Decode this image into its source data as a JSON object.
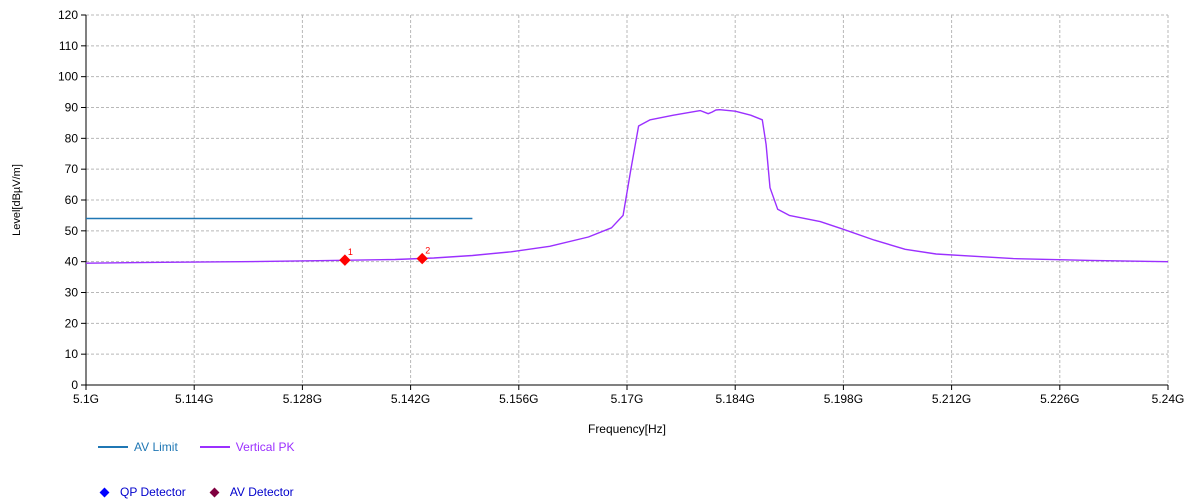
{
  "chart_data": {
    "type": "line",
    "xlabel": "Frequency[Hz]",
    "ylabel": "Level[dBµV/m]",
    "xlim": [
      5.1,
      5.24
    ],
    "ylim": [
      0,
      120
    ],
    "x_ticks": [
      5.1,
      5.114,
      5.128,
      5.142,
      5.156,
      5.17,
      5.184,
      5.198,
      5.212,
      5.226,
      5.24
    ],
    "x_tick_labels": [
      "5.1G",
      "5.114G",
      "5.128G",
      "5.142G",
      "5.156G",
      "5.17G",
      "5.184G",
      "5.198G",
      "5.212G",
      "5.226G",
      "5.24G"
    ],
    "y_ticks": [
      0,
      10,
      20,
      30,
      40,
      50,
      60,
      70,
      80,
      90,
      100,
      110,
      120
    ],
    "grid": true,
    "series": [
      {
        "name": "AV Limit",
        "color": "#1f77b4",
        "x": [
          5.1,
          5.15
        ],
        "y": [
          54,
          54
        ]
      },
      {
        "name": "Vertical PK",
        "color": "#9b30ff",
        "x": [
          5.1,
          5.11,
          5.12,
          5.13,
          5.14,
          5.145,
          5.15,
          5.155,
          5.16,
          5.165,
          5.168,
          5.1695,
          5.1705,
          5.1715,
          5.173,
          5.176,
          5.179,
          5.1795,
          5.1805,
          5.181,
          5.1815,
          5.182,
          5.184,
          5.186,
          5.1875,
          5.188,
          5.1885,
          5.1895,
          5.191,
          5.195,
          5.198,
          5.202,
          5.206,
          5.21,
          5.22,
          5.23,
          5.24
        ],
        "y": [
          39.5,
          39.8,
          40,
          40.3,
          40.7,
          41.2,
          42,
          43.2,
          45,
          48,
          51,
          55,
          70,
          84,
          86,
          87.5,
          88.8,
          89,
          88,
          88.5,
          89.2,
          89.3,
          88.8,
          87.5,
          86,
          78,
          64,
          57,
          55,
          53,
          50.5,
          47,
          44,
          42.5,
          41,
          40.4,
          40
        ]
      }
    ],
    "markers": [
      {
        "label": "1",
        "x": 5.1335,
        "y": 40.5,
        "color": "#ff0000"
      },
      {
        "label": "2",
        "x": 5.1435,
        "y": 41,
        "color": "#ff0000"
      }
    ],
    "detector_legend": [
      {
        "name": "QP Detector",
        "color": "#0000ff"
      },
      {
        "name": "AV Detector",
        "color": "#800040"
      }
    ]
  }
}
